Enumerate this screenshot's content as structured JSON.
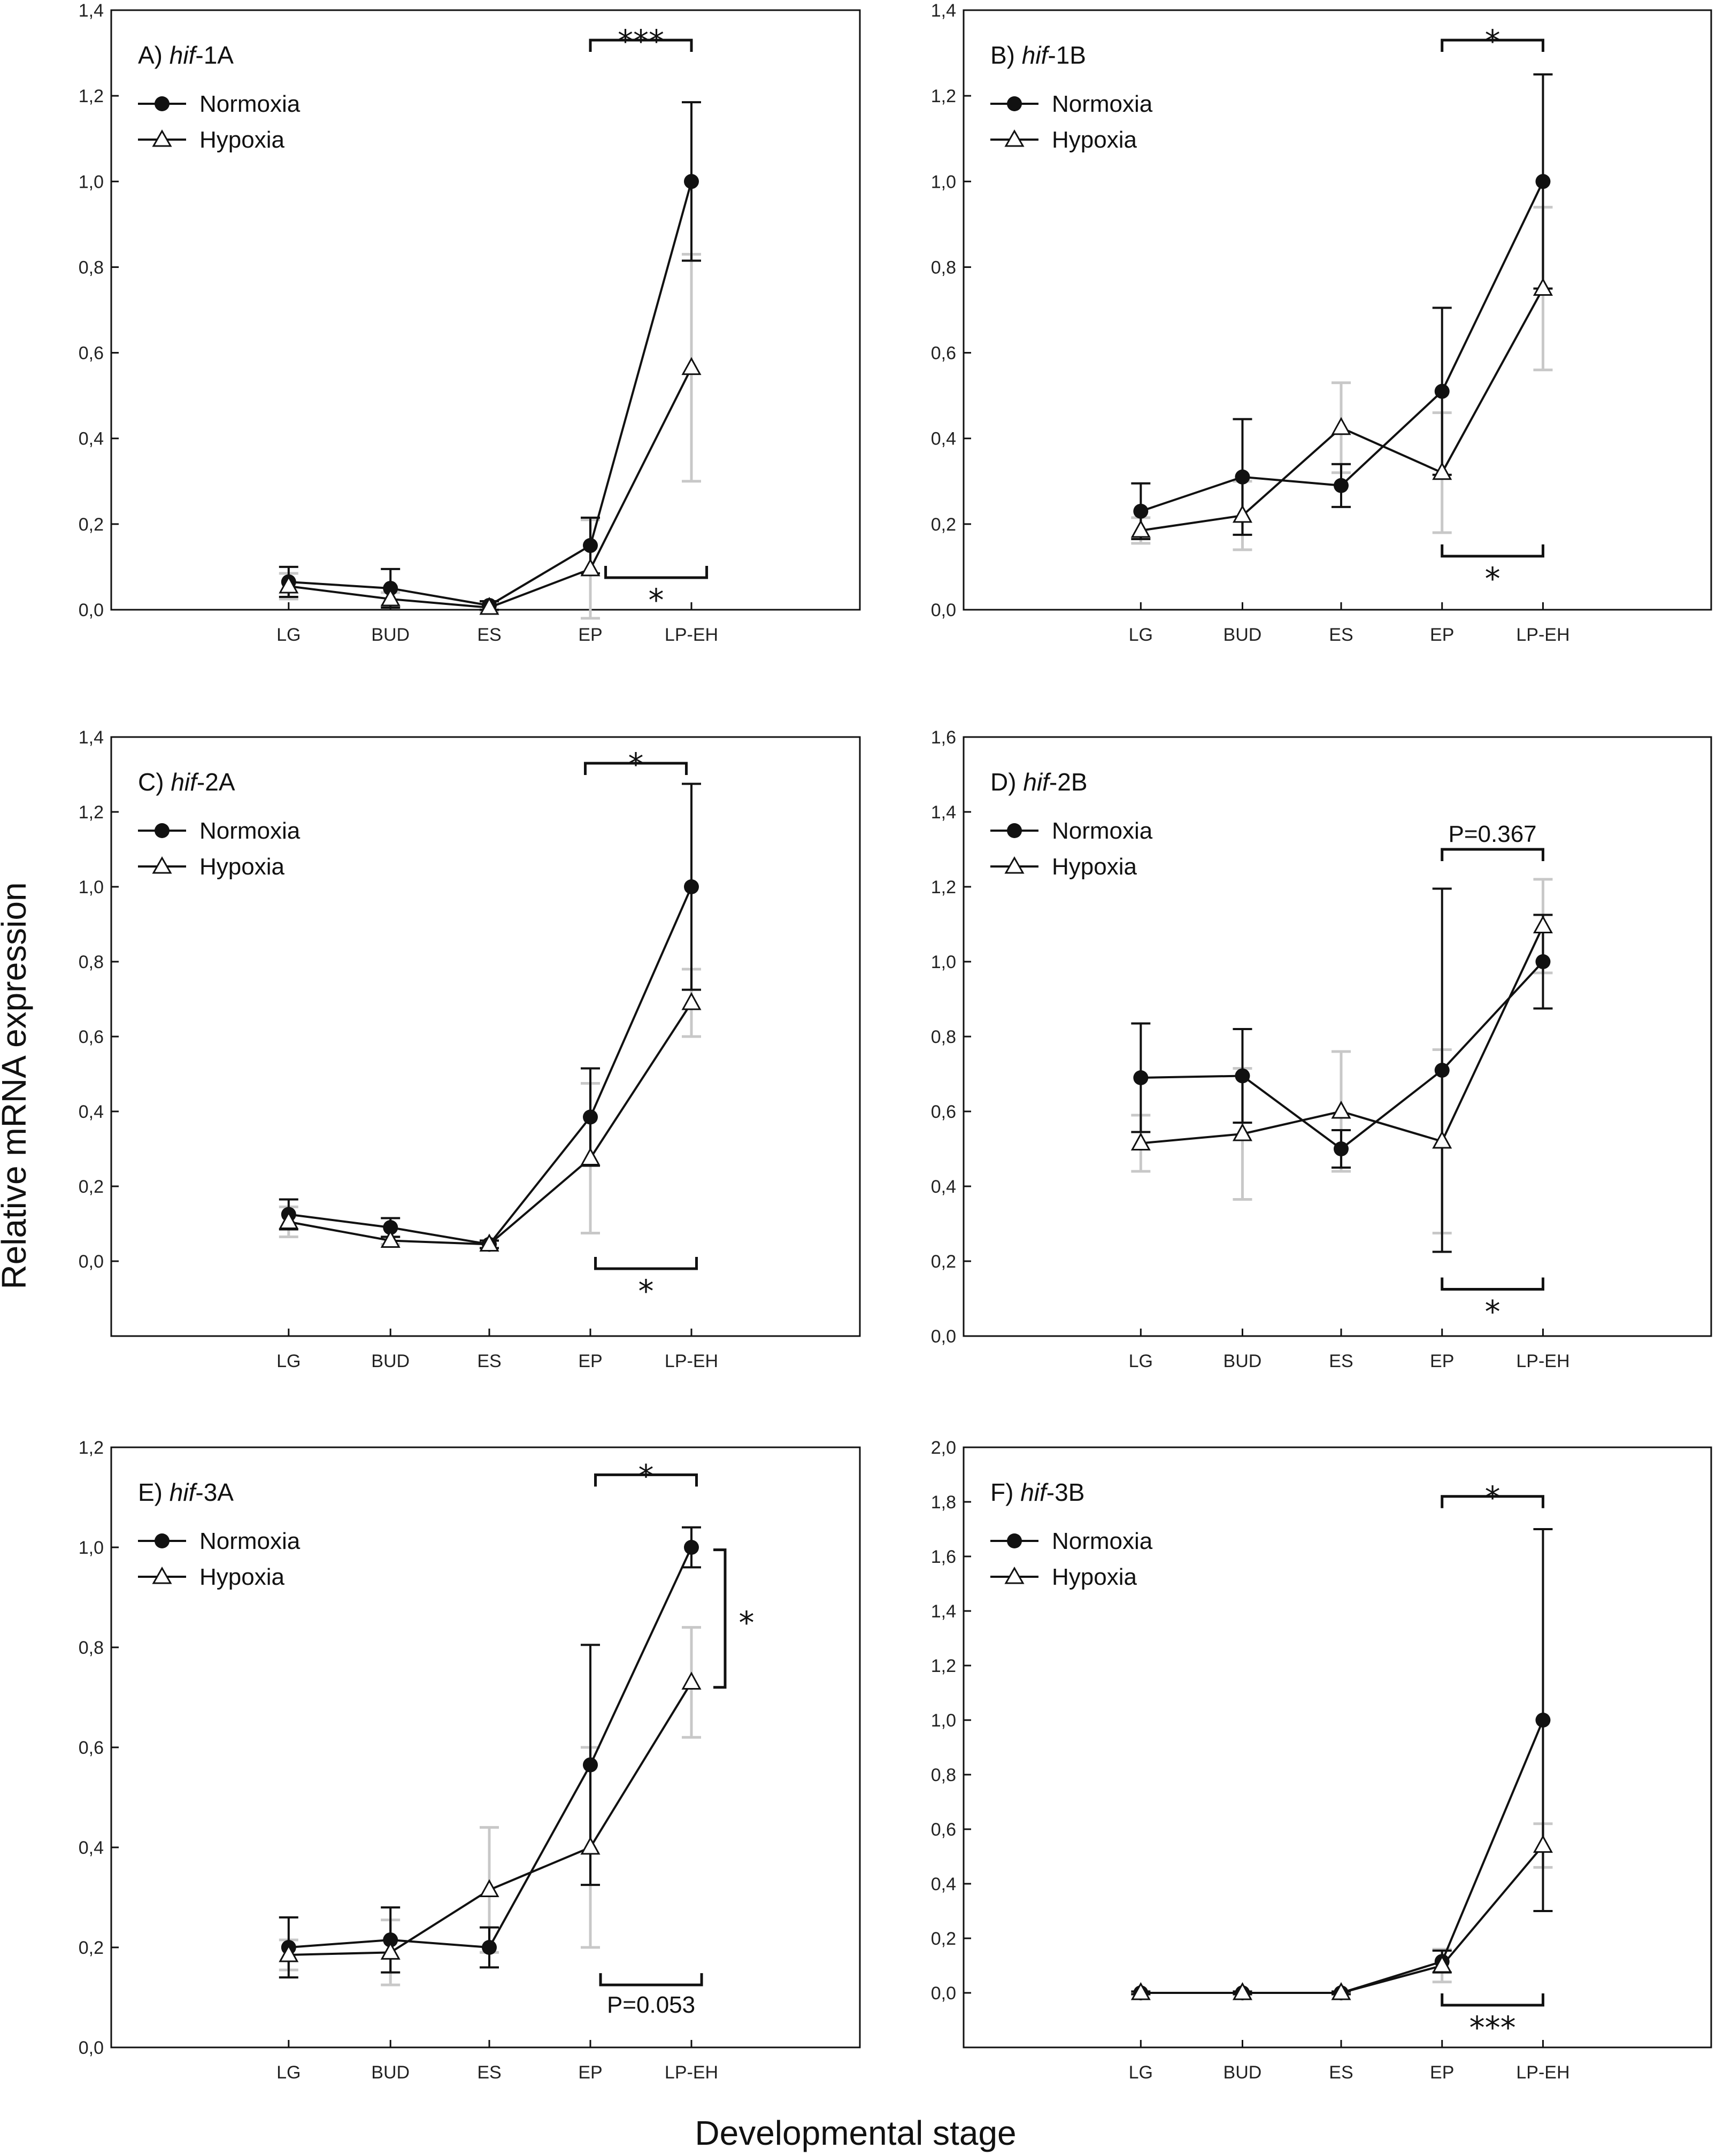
{
  "figure": {
    "ylabel": "Relative mRNA expression",
    "xlabel": "Developmental stage"
  },
  "legend": {
    "normoxia": "Normoxia",
    "hypoxia": "Hypoxia"
  },
  "colors": {
    "normoxia": "#111111",
    "hypoxia_marker": "#ffffff",
    "hypoxia_error": "#c8c8c8",
    "axis": "#111111"
  },
  "chart_data": [
    {
      "type": "line",
      "panel": "A",
      "title_prefix": "A) ",
      "title_italic": "hif",
      "title_suffix": "-1A",
      "categories": [
        "LG",
        "BUD",
        "ES",
        "EP",
        "LP-EH"
      ],
      "ylim": [
        0,
        1.4
      ],
      "yticks": [
        "0,0",
        "0,2",
        "0,4",
        "0,6",
        "0,8",
        "1,0",
        "1,2",
        "1,4"
      ],
      "series": [
        {
          "name": "Normoxia",
          "values": [
            0.065,
            0.05,
            0.01,
            0.15,
            1.0
          ],
          "err": [
            0.035,
            0.045,
            0.01,
            0.065,
            0.185
          ]
        },
        {
          "name": "Hypoxia",
          "values": [
            0.055,
            0.025,
            0.005,
            0.095,
            0.565
          ],
          "err": [
            0.03,
            0.015,
            0.01,
            0.115,
            0.265
          ]
        }
      ],
      "annotations": [
        {
          "text": "***",
          "from": 3,
          "to": 4,
          "level": 1.33,
          "side": "above"
        },
        {
          "text": "*",
          "from": 3.15,
          "to": 4.15,
          "level": 0.075,
          "side": "below"
        }
      ]
    },
    {
      "type": "line",
      "panel": "B",
      "title_prefix": "B) ",
      "title_italic": "hif",
      "title_suffix": "-1B",
      "categories": [
        "LG",
        "BUD",
        "ES",
        "EP",
        "LP-EH"
      ],
      "ylim": [
        0,
        1.4
      ],
      "yticks": [
        "0,0",
        "0,2",
        "0,4",
        "0,6",
        "0,8",
        "1,0",
        "1,2",
        "1,4"
      ],
      "series": [
        {
          "name": "Normoxia",
          "values": [
            0.23,
            0.31,
            0.29,
            0.51,
            1.0
          ],
          "err": [
            0.065,
            0.135,
            0.05,
            0.195,
            0.25
          ]
        },
        {
          "name": "Hypoxia",
          "values": [
            0.185,
            0.22,
            0.425,
            0.32,
            0.75
          ],
          "err": [
            0.03,
            0.08,
            0.105,
            0.14,
            0.19
          ]
        }
      ],
      "annotations": [
        {
          "text": "*",
          "from": 3,
          "to": 4,
          "level": 1.33,
          "side": "above"
        },
        {
          "text": "*",
          "from": 3,
          "to": 4,
          "level": 0.125,
          "side": "below"
        }
      ]
    },
    {
      "type": "line",
      "panel": "C",
      "title_prefix": "C) ",
      "title_italic": "hif",
      "title_suffix": "-2A",
      "categories": [
        "LG",
        "BUD",
        "ES",
        "EP",
        "LP-EH"
      ],
      "ylim": [
        -0.2,
        1.4
      ],
      "yticks": [
        "0,0",
        "0,2",
        "0,4",
        "0,6",
        "0,8",
        "1,0",
        "1,2",
        "1,4"
      ],
      "series": [
        {
          "name": "Normoxia",
          "values": [
            0.125,
            0.09,
            0.045,
            0.385,
            1.0
          ],
          "err": [
            0.04,
            0.025,
            0.01,
            0.13,
            0.275
          ]
        },
        {
          "name": "Hypoxia",
          "values": [
            0.105,
            0.055,
            0.045,
            0.275,
            0.69
          ],
          "err": [
            0.04,
            0.01,
            0.01,
            0.2,
            0.09
          ]
        }
      ],
      "annotations": [
        {
          "text": "*",
          "from": 2.95,
          "to": 3.95,
          "level": 1.33,
          "side": "above"
        },
        {
          "text": "*",
          "from": 3.05,
          "to": 4.05,
          "level": -0.02,
          "side": "below"
        }
      ]
    },
    {
      "type": "line",
      "panel": "D",
      "title_prefix": "D) ",
      "title_italic": "hif",
      "title_suffix": "-2B",
      "categories": [
        "LG",
        "BUD",
        "ES",
        "EP",
        "LP-EH"
      ],
      "ylim": [
        0,
        1.6
      ],
      "yticks": [
        "0,0",
        "0,2",
        "0,4",
        "0,6",
        "0,8",
        "1,0",
        "1,2",
        "1,4",
        "1,6"
      ],
      "series": [
        {
          "name": "Normoxia",
          "values": [
            0.69,
            0.695,
            0.5,
            0.71,
            1.0
          ],
          "err": [
            0.145,
            0.125,
            0.05,
            0.485,
            0.125
          ]
        },
        {
          "name": "Hypoxia",
          "values": [
            0.515,
            0.54,
            0.6,
            0.52,
            1.095
          ],
          "err": [
            0.075,
            0.175,
            0.16,
            0.245,
            0.125
          ]
        }
      ],
      "annotations": [
        {
          "text": "P=0.367",
          "from": 3,
          "to": 4,
          "level": 1.3,
          "side": "above"
        },
        {
          "text": "*",
          "from": 3,
          "to": 4,
          "level": 0.125,
          "side": "below"
        }
      ]
    },
    {
      "type": "line",
      "panel": "E",
      "title_prefix": "E) ",
      "title_italic": "hif",
      "title_suffix": "-3A",
      "categories": [
        "LG",
        "BUD",
        "ES",
        "EP",
        "LP-EH"
      ],
      "ylim": [
        0,
        1.2
      ],
      "yticks": [
        "0,0",
        "0,2",
        "0,4",
        "0,6",
        "0,8",
        "1,0",
        "1,2"
      ],
      "series": [
        {
          "name": "Normoxia",
          "values": [
            0.2,
            0.215,
            0.2,
            0.565,
            1.0
          ],
          "err": [
            0.06,
            0.065,
            0.04,
            0.24,
            0.04
          ]
        },
        {
          "name": "Hypoxia",
          "values": [
            0.185,
            0.19,
            0.315,
            0.4,
            0.73
          ],
          "err": [
            0.03,
            0.065,
            0.125,
            0.2,
            0.11
          ]
        }
      ],
      "annotations": [
        {
          "text": "*",
          "from": 3.05,
          "to": 4.05,
          "level": 1.145,
          "side": "above"
        },
        {
          "text": "P=0.053",
          "from": 3.1,
          "to": 4.1,
          "level": 0.125,
          "side": "below"
        },
        {
          "text": "*",
          "from": 0.72,
          "to": 0.995,
          "level": 4.3,
          "side": "vertical"
        }
      ]
    },
    {
      "type": "line",
      "panel": "F",
      "title_prefix": "F) ",
      "title_italic": "hif",
      "title_suffix": "-3B",
      "categories": [
        "LG",
        "BUD",
        "ES",
        "EP",
        "LP-EH"
      ],
      "ylim": [
        -0.2,
        2.0
      ],
      "yticks": [
        "0,0",
        "0,2",
        "0,4",
        "0,6",
        "0,8",
        "1,0",
        "1,2",
        "1,4",
        "1,6",
        "1,8",
        "2,0"
      ],
      "series": [
        {
          "name": "Normoxia",
          "values": [
            0.0,
            0.0,
            0.0,
            0.115,
            1.0
          ],
          "err": [
            0.005,
            0.005,
            0.005,
            0.04,
            0.7
          ]
        },
        {
          "name": "Hypoxia",
          "values": [
            0.0,
            0.0,
            0.0,
            0.1,
            0.54
          ],
          "err": [
            0.005,
            0.005,
            0.005,
            0.06,
            0.08
          ]
        }
      ],
      "annotations": [
        {
          "text": "*",
          "from": 3,
          "to": 4,
          "level": 1.82,
          "side": "above"
        },
        {
          "text": "***",
          "from": 3,
          "to": 4,
          "level": -0.045,
          "side": "below"
        }
      ]
    }
  ]
}
